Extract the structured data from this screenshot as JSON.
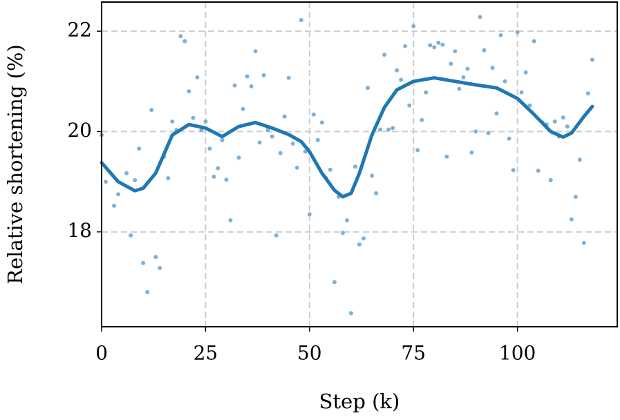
{
  "chart_data": {
    "type": "line",
    "xlabel": "Step (k)",
    "ylabel": "Relative shortening (%)",
    "xlim": [
      0,
      124
    ],
    "ylim": [
      16.11,
      22.58
    ],
    "xticks": [
      0,
      25,
      50,
      75,
      100
    ],
    "yticks": [
      18,
      20,
      22
    ],
    "grid": true,
    "grid_color": "#cccccc",
    "series": [
      {
        "type": "scatter",
        "color": "#7fb0d6",
        "x": [
          0,
          1,
          3,
          4,
          6,
          7,
          8,
          9,
          10,
          11,
          12,
          13,
          14,
          15,
          16,
          17,
          18,
          19,
          20,
          21,
          22,
          23,
          24,
          25,
          26,
          27,
          28,
          29,
          30,
          31,
          32,
          33,
          34,
          35,
          36,
          37,
          38,
          39,
          40,
          41,
          42,
          43,
          44,
          45,
          46,
          47,
          48,
          49,
          50,
          51,
          52,
          53,
          54,
          55,
          56,
          57,
          58,
          59,
          60,
          61,
          62,
          63,
          64,
          65,
          66,
          67,
          68,
          69,
          70,
          71,
          72,
          73,
          74,
          75,
          76,
          77,
          78,
          79,
          80,
          81,
          82,
          83,
          84,
          85,
          86,
          87,
          88,
          89,
          90,
          91,
          92,
          93,
          94,
          95,
          96,
          97,
          98,
          99,
          100,
          101,
          102,
          103,
          104,
          105,
          106,
          107,
          108,
          109,
          110,
          111,
          112,
          113,
          114,
          115,
          116,
          117,
          118
        ],
        "values": [
          19.93,
          19.0,
          18.52,
          18.75,
          19.17,
          17.93,
          19.03,
          19.66,
          17.38,
          16.8,
          20.43,
          17.5,
          17.28,
          19.5,
          19.07,
          20.2,
          20.03,
          21.9,
          21.8,
          20.8,
          20.27,
          21.08,
          20.03,
          20.2,
          19.66,
          19.1,
          19.27,
          19.83,
          19.04,
          18.23,
          20.92,
          19.48,
          20.45,
          21.1,
          20.9,
          21.6,
          19.78,
          21.12,
          20.03,
          19.9,
          17.93,
          19.57,
          20.3,
          21.07,
          19.76,
          19.28,
          22.22,
          19.6,
          18.35,
          20.34,
          19.83,
          20.18,
          19.07,
          19.24,
          17.0,
          18.7,
          17.98,
          18.23,
          16.38,
          19.3,
          17.75,
          17.87,
          20.87,
          19.12,
          18.77,
          20.04,
          21.53,
          20.04,
          20.07,
          21.22,
          21.03,
          21.7,
          20.52,
          22.1,
          19.63,
          20.23,
          20.78,
          21.72,
          21.68,
          21.77,
          21.73,
          19.5,
          21.35,
          21.6,
          20.85,
          21.08,
          21.25,
          19.58,
          20.0,
          22.28,
          21.62,
          19.97,
          21.27,
          20.36,
          21.92,
          21.0,
          19.86,
          19.23,
          21.98,
          20.78,
          21.18,
          20.52,
          21.8,
          19.22,
          20.18,
          20.14,
          19.03,
          20.2,
          19.9,
          20.28,
          20.1,
          18.25,
          18.7,
          19.44,
          17.78,
          20.76,
          21.43
        ]
      },
      {
        "type": "line",
        "color": "#1f77b4",
        "x": [
          0,
          4,
          8,
          10,
          13,
          17,
          21,
          25,
          29,
          33,
          37,
          41,
          45,
          48,
          50,
          53,
          56,
          58,
          60,
          62,
          65,
          68,
          71,
          75,
          80,
          85,
          90,
          95,
          100,
          104,
          108,
          111,
          113,
          116,
          118
        ],
        "values": [
          19.38,
          19.0,
          18.82,
          18.87,
          19.17,
          19.93,
          20.14,
          20.07,
          19.9,
          20.1,
          20.18,
          20.07,
          19.94,
          19.8,
          19.6,
          19.17,
          18.83,
          18.7,
          18.77,
          19.17,
          19.93,
          20.48,
          20.83,
          21.0,
          21.07,
          21.0,
          20.93,
          20.87,
          20.66,
          20.34,
          20.0,
          19.89,
          19.97,
          20.3,
          20.5
        ]
      }
    ]
  }
}
